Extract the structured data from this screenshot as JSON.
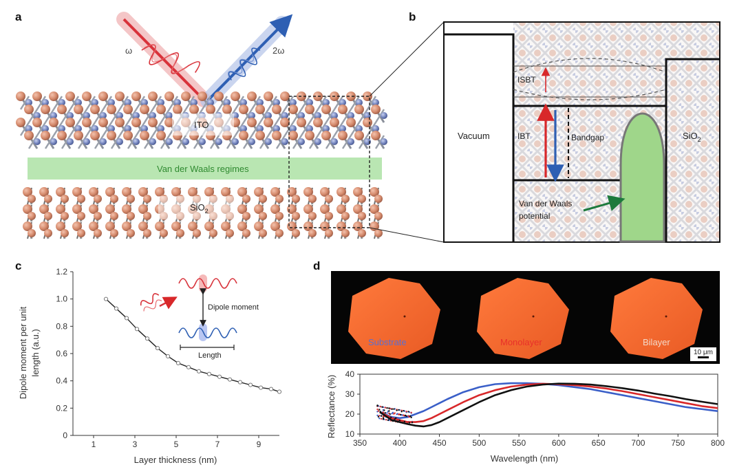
{
  "panels": {
    "a": {
      "label": "a",
      "omega_label": "ω",
      "two_omega_label": "2ω",
      "ito_label": "ITO",
      "vdw_regimes_label": "Van der Waals regimes",
      "sio2_label": "SiO",
      "sio2_sub": "2",
      "colors": {
        "red_beam": "#d8323a",
        "blue_beam": "#2e5fb3",
        "vdw_band": "#b9e6b2",
        "atom_orange": "#d88a6e",
        "atom_blue": "#6f7fb5"
      }
    },
    "b": {
      "label": "b",
      "vacuum_label": "Vacuum",
      "isbt_label": "ISBT",
      "ibt_label": "IBT",
      "bandgap_label": "Bandgap",
      "sio2_label": "SiO",
      "sio2_sub": "2",
      "vdw_potential_line1": "Van der Waals",
      "vdw_potential_line2": "potential",
      "colors": {
        "potential_fill": "#9fd68a",
        "arrow_green": "#1d7a3c"
      }
    },
    "c": {
      "label": "c",
      "inset_dipole_label": "Dipole moment",
      "inset_length_label": "Length"
    },
    "d": {
      "label": "d",
      "image_labels": {
        "substrate": "Substrate",
        "monolayer": "Monolayer",
        "bilayer": "Bilayer"
      },
      "image_label_colors": {
        "substrate": "#5a6fd0",
        "monolayer": "#e8302a",
        "bilayer": "#f3d9c8"
      },
      "scale_bar_label": "10 μm"
    }
  },
  "chart_data": [
    {
      "type": "line",
      "panel": "c",
      "title": "",
      "xlabel": "Layer thickness (nm)",
      "ylabel_line1": "Dipole moment per unit",
      "ylabel_line2": "length (a.u.)",
      "xlim": [
        0,
        10
      ],
      "ylim": [
        0,
        1.2
      ],
      "x_ticks": [
        1,
        3,
        5,
        7,
        9
      ],
      "x_tick_labels": [
        "1",
        "3",
        "5",
        "7",
        "9"
      ],
      "y_ticks": [
        0,
        0.2,
        0.4,
        0.6,
        0.8,
        1.0,
        1.2
      ],
      "y_tick_labels": [
        "0",
        "0.2",
        "0.4",
        "0.6",
        "0.8",
        "1.0",
        "1.2"
      ],
      "grid": false,
      "series": [
        {
          "x": [
            1.6,
            2.1,
            2.6,
            3.1,
            3.6,
            4.1,
            4.6,
            5.1,
            5.6,
            6.1,
            6.6,
            7.1,
            7.6,
            8.1,
            8.6,
            9.1,
            9.6,
            10.0
          ],
          "values": [
            1.0,
            0.93,
            0.86,
            0.78,
            0.71,
            0.64,
            0.58,
            0.53,
            0.5,
            0.47,
            0.45,
            0.43,
            0.41,
            0.39,
            0.37,
            0.35,
            0.34,
            0.32
          ],
          "color": "#222222"
        }
      ]
    },
    {
      "type": "line",
      "panel": "d",
      "title": "",
      "xlabel": "Wavelength (nm)",
      "ylabel": "Reflectance (%)",
      "xlim": [
        350,
        800
      ],
      "ylim": [
        10,
        40
      ],
      "x_ticks": [
        350,
        400,
        450,
        500,
        550,
        600,
        650,
        700,
        750,
        800
      ],
      "x_tick_labels": [
        "350",
        "400",
        "450",
        "500",
        "550",
        "600",
        "650",
        "700",
        "750",
        "800"
      ],
      "y_ticks": [
        10,
        20,
        30,
        40
      ],
      "y_tick_labels": [
        "10",
        "20",
        "30",
        "40"
      ],
      "grid": false,
      "series": [
        {
          "name": "Substrate",
          "color": "#3a5fc8",
          "x": [
            375,
            390,
            400,
            410,
            420,
            430,
            440,
            450,
            460,
            480,
            500,
            520,
            540,
            560,
            580,
            600,
            620,
            640,
            660,
            680,
            700,
            720,
            740,
            760,
            780,
            800
          ],
          "values": [
            21,
            18.5,
            18,
            18.5,
            20,
            21.5,
            23.5,
            25.5,
            27.5,
            31,
            33.5,
            35,
            35.5,
            35.5,
            35.2,
            34.5,
            33.5,
            32.5,
            31,
            29.5,
            28,
            26.5,
            25,
            23.5,
            22.5,
            21.5
          ]
        },
        {
          "name": "Monolayer",
          "color": "#d8282a",
          "x": [
            375,
            390,
            400,
            410,
            420,
            430,
            440,
            450,
            460,
            480,
            500,
            520,
            540,
            560,
            580,
            600,
            620,
            640,
            660,
            680,
            700,
            720,
            740,
            760,
            780,
            800
          ],
          "values": [
            21,
            18,
            17,
            16,
            16,
            16.5,
            18,
            20,
            22,
            26,
            29.5,
            32,
            33.8,
            34.8,
            35.2,
            35,
            34.5,
            33.8,
            32.8,
            31.5,
            30,
            28.5,
            27,
            25.5,
            24,
            23
          ]
        },
        {
          "name": "Bilayer",
          "color": "#111111",
          "x": [
            375,
            390,
            400,
            410,
            420,
            430,
            440,
            450,
            460,
            480,
            500,
            520,
            540,
            560,
            580,
            600,
            620,
            640,
            660,
            680,
            700,
            720,
            740,
            760,
            780,
            800
          ],
          "values": [
            21,
            17,
            16,
            15,
            14.2,
            13.8,
            14.5,
            16,
            18,
            22,
            26,
            29.5,
            32,
            33.8,
            34.8,
            35.3,
            35.2,
            34.8,
            34,
            33,
            31.8,
            30.3,
            29,
            27.5,
            26.2,
            25
          ]
        }
      ]
    }
  ]
}
